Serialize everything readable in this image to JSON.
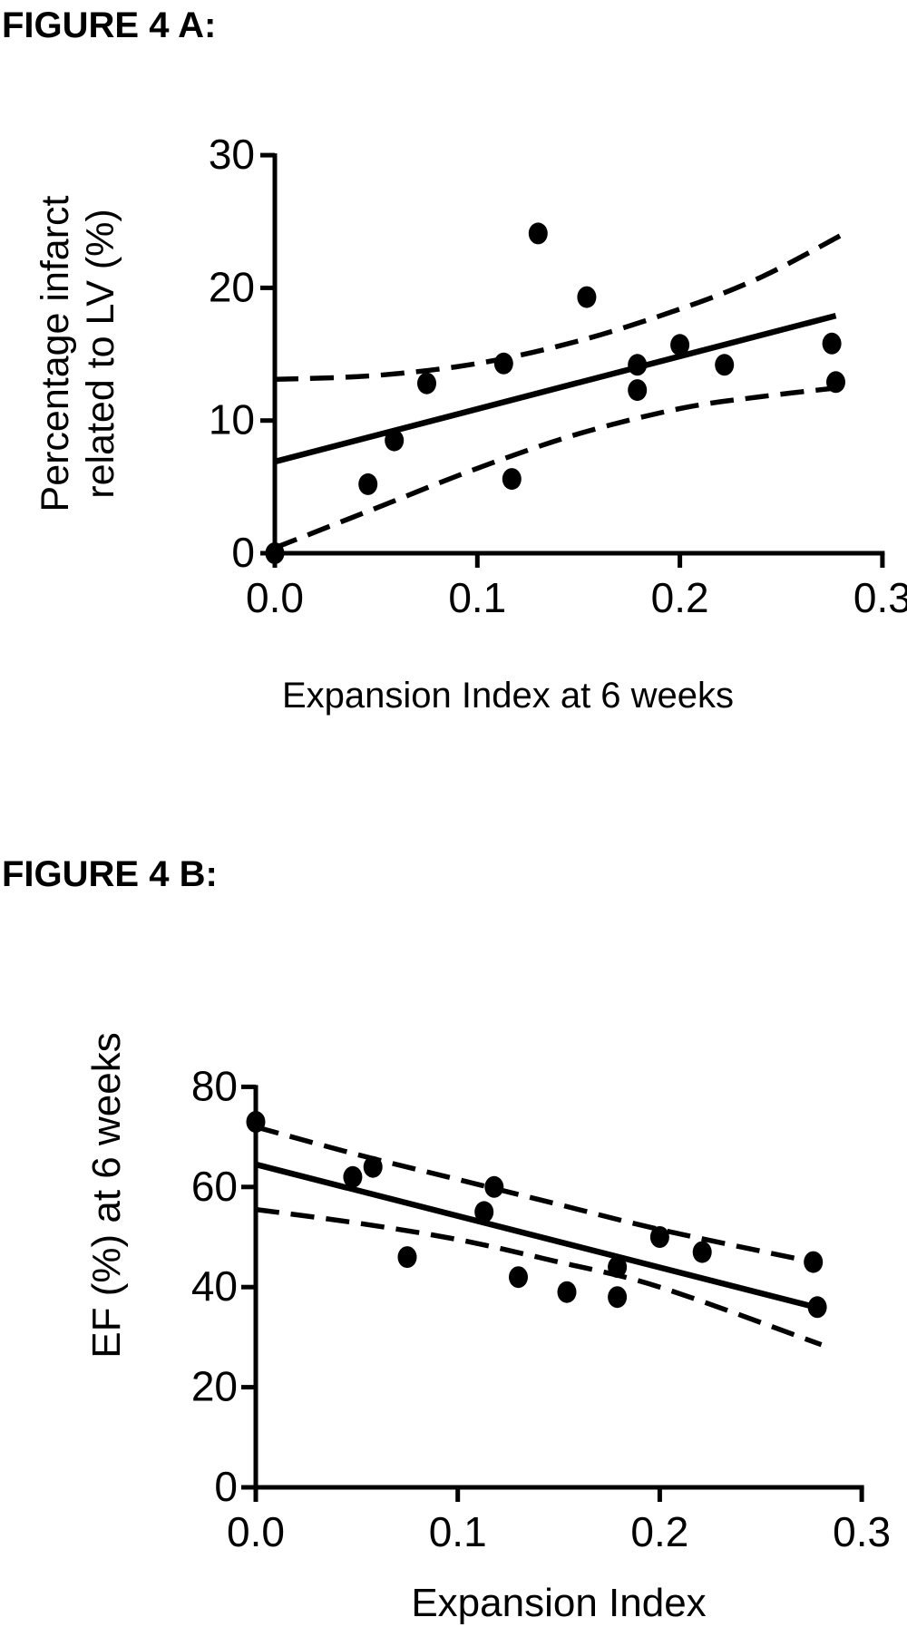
{
  "page": {
    "background": "#ffffff",
    "ink_color": "#000000"
  },
  "figures": [
    {
      "label": "FIGURE 4 A:"
    },
    {
      "label": "FIGURE 4 B:"
    }
  ],
  "chart_data": [
    {
      "type": "scatter",
      "figure_label": "FIGURE 4 A:",
      "xlabel": "Expansion Index at 6 weeks",
      "ylabel_lines": [
        "Percentage infarct",
        "related to LV (%)"
      ],
      "xlim": [
        0.0,
        0.3
      ],
      "ylim": [
        0,
        30
      ],
      "xticks": [
        "0.0",
        "0.1",
        "0.2",
        "0.3"
      ],
      "xtick_values": [
        0.0,
        0.1,
        0.2,
        0.3
      ],
      "yticks": [
        "0",
        "10",
        "20",
        "30"
      ],
      "ytick_values": [
        0,
        10,
        20,
        30
      ],
      "grid": false,
      "legend": "none",
      "marker": {
        "shape": "circle",
        "color": "#000000"
      },
      "points": [
        [
          0.0,
          0.0
        ],
        [
          0.046,
          5.2
        ],
        [
          0.059,
          8.5
        ],
        [
          0.075,
          12.8
        ],
        [
          0.113,
          14.3
        ],
        [
          0.117,
          5.6
        ],
        [
          0.13,
          24.1
        ],
        [
          0.154,
          19.3
        ],
        [
          0.179,
          14.2
        ],
        [
          0.179,
          12.3
        ],
        [
          0.2,
          15.7
        ],
        [
          0.222,
          14.2
        ],
        [
          0.275,
          15.8
        ],
        [
          0.277,
          12.9
        ]
      ],
      "regression_line": {
        "x": [
          0.0,
          0.277
        ],
        "y": [
          6.9,
          17.9
        ],
        "style": "solid"
      },
      "ci_upper": [
        [
          0.0,
          13.1
        ],
        [
          0.05,
          13.4
        ],
        [
          0.1,
          14.3
        ],
        [
          0.15,
          16.0
        ],
        [
          0.2,
          18.4
        ],
        [
          0.24,
          20.8
        ],
        [
          0.28,
          24.0
        ]
      ],
      "ci_lower": [
        [
          0.0,
          0.4
        ],
        [
          0.05,
          3.4
        ],
        [
          0.1,
          6.4
        ],
        [
          0.15,
          9.0
        ],
        [
          0.2,
          10.9
        ],
        [
          0.24,
          11.8
        ],
        [
          0.28,
          12.5
        ]
      ],
      "ci_style": "dashed"
    },
    {
      "type": "scatter",
      "figure_label": "FIGURE 4 B:",
      "xlabel": "Expansion Index",
      "ylabel_lines": [
        "EF (%) at 6 weeks"
      ],
      "xlim": [
        0.0,
        0.3
      ],
      "ylim": [
        0,
        80
      ],
      "xticks": [
        "0.0",
        "0.1",
        "0.2",
        "0.3"
      ],
      "xtick_values": [
        0.0,
        0.1,
        0.2,
        0.3
      ],
      "yticks": [
        "0",
        "20",
        "40",
        "60",
        "80"
      ],
      "ytick_values": [
        0,
        20,
        40,
        60,
        80
      ],
      "grid": false,
      "legend": "none",
      "marker": {
        "shape": "circle",
        "color": "#000000"
      },
      "points": [
        [
          0.0,
          73
        ],
        [
          0.048,
          62
        ],
        [
          0.058,
          64
        ],
        [
          0.075,
          46
        ],
        [
          0.113,
          55
        ],
        [
          0.118,
          60
        ],
        [
          0.13,
          42
        ],
        [
          0.154,
          39
        ],
        [
          0.179,
          44
        ],
        [
          0.179,
          38
        ],
        [
          0.2,
          50
        ],
        [
          0.221,
          47
        ],
        [
          0.276,
          45
        ],
        [
          0.278,
          36
        ]
      ],
      "regression_line": {
        "x": [
          0.0,
          0.277
        ],
        "y": [
          64.5,
          36.0
        ],
        "style": "solid"
      },
      "ci_upper": [
        [
          0.0,
          72.0
        ],
        [
          0.05,
          66.5
        ],
        [
          0.1,
          61.5
        ],
        [
          0.15,
          56.5
        ],
        [
          0.2,
          51.5
        ],
        [
          0.276,
          45.0
        ]
      ],
      "ci_lower": [
        [
          0.0,
          55.5
        ],
        [
          0.05,
          52.8
        ],
        [
          0.1,
          49.5
        ],
        [
          0.15,
          45.0
        ],
        [
          0.2,
          40.0
        ],
        [
          0.28,
          28.5
        ]
      ],
      "ci_style": "dashed"
    }
  ]
}
